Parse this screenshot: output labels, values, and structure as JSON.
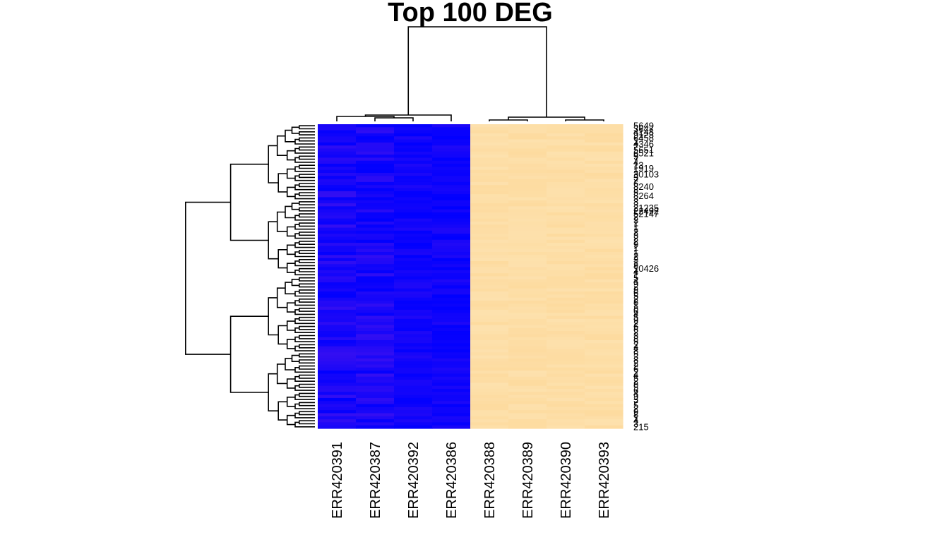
{
  "chart_data": {
    "type": "heatmap",
    "title": "Top 100 DEG",
    "columns": [
      "ERR420391",
      "ERR420387",
      "ERR420392",
      "ERR420386",
      "ERR420388",
      "ERR420389",
      "ERR420390",
      "ERR420393"
    ],
    "row_labels": [
      "5649",
      "3647",
      "4148",
      "9123",
      "6458",
      "1",
      "4346",
      "7",
      "5651",
      "6521",
      "9",
      "7",
      "4",
      "13",
      "1919",
      "1",
      "30103",
      "3",
      "7",
      "6",
      "8240",
      "3",
      "5",
      "8264",
      "3",
      "3",
      "3",
      "21235",
      "22492",
      "52147",
      "2",
      "3",
      "1",
      "1",
      "1",
      "2",
      "3",
      "2",
      "2",
      "9",
      "1",
      "1",
      "1",
      "2",
      "3",
      "1",
      "8",
      "10426",
      "4",
      "1",
      "5",
      "4",
      "9",
      "2",
      "8",
      "6",
      "5",
      "2",
      "8",
      "1",
      "8",
      "6",
      "4",
      "5",
      "9",
      "2",
      "6",
      "6",
      "2",
      "3",
      "8",
      "5",
      "2",
      "4",
      "8",
      "5",
      "3",
      "8",
      "2",
      "2",
      "6",
      "2",
      "4",
      "5",
      "2",
      "8",
      "5",
      "6",
      "4",
      "9",
      "3",
      "7",
      "5",
      "2",
      "9",
      "8",
      "1",
      "4",
      "3",
      "215"
    ],
    "colors": {
      "low": "#0000ff",
      "low_variant": "#3a10f0",
      "high": "#fde1ad",
      "high_variant": "#fdd99b"
    },
    "groups": {
      "low_columns": [
        "ERR420391",
        "ERR420387",
        "ERR420392",
        "ERR420386"
      ],
      "high_columns": [
        "ERR420388",
        "ERR420389",
        "ERR420390",
        "ERR420393"
      ]
    },
    "column_dendrogram": "((ERR420391,(ERR420387,ERR420392)),ERR420386),((ERR420388,ERR420389),(ERR420390,ERR420393))",
    "xlabel": "",
    "ylabel": "",
    "legend": "none"
  }
}
